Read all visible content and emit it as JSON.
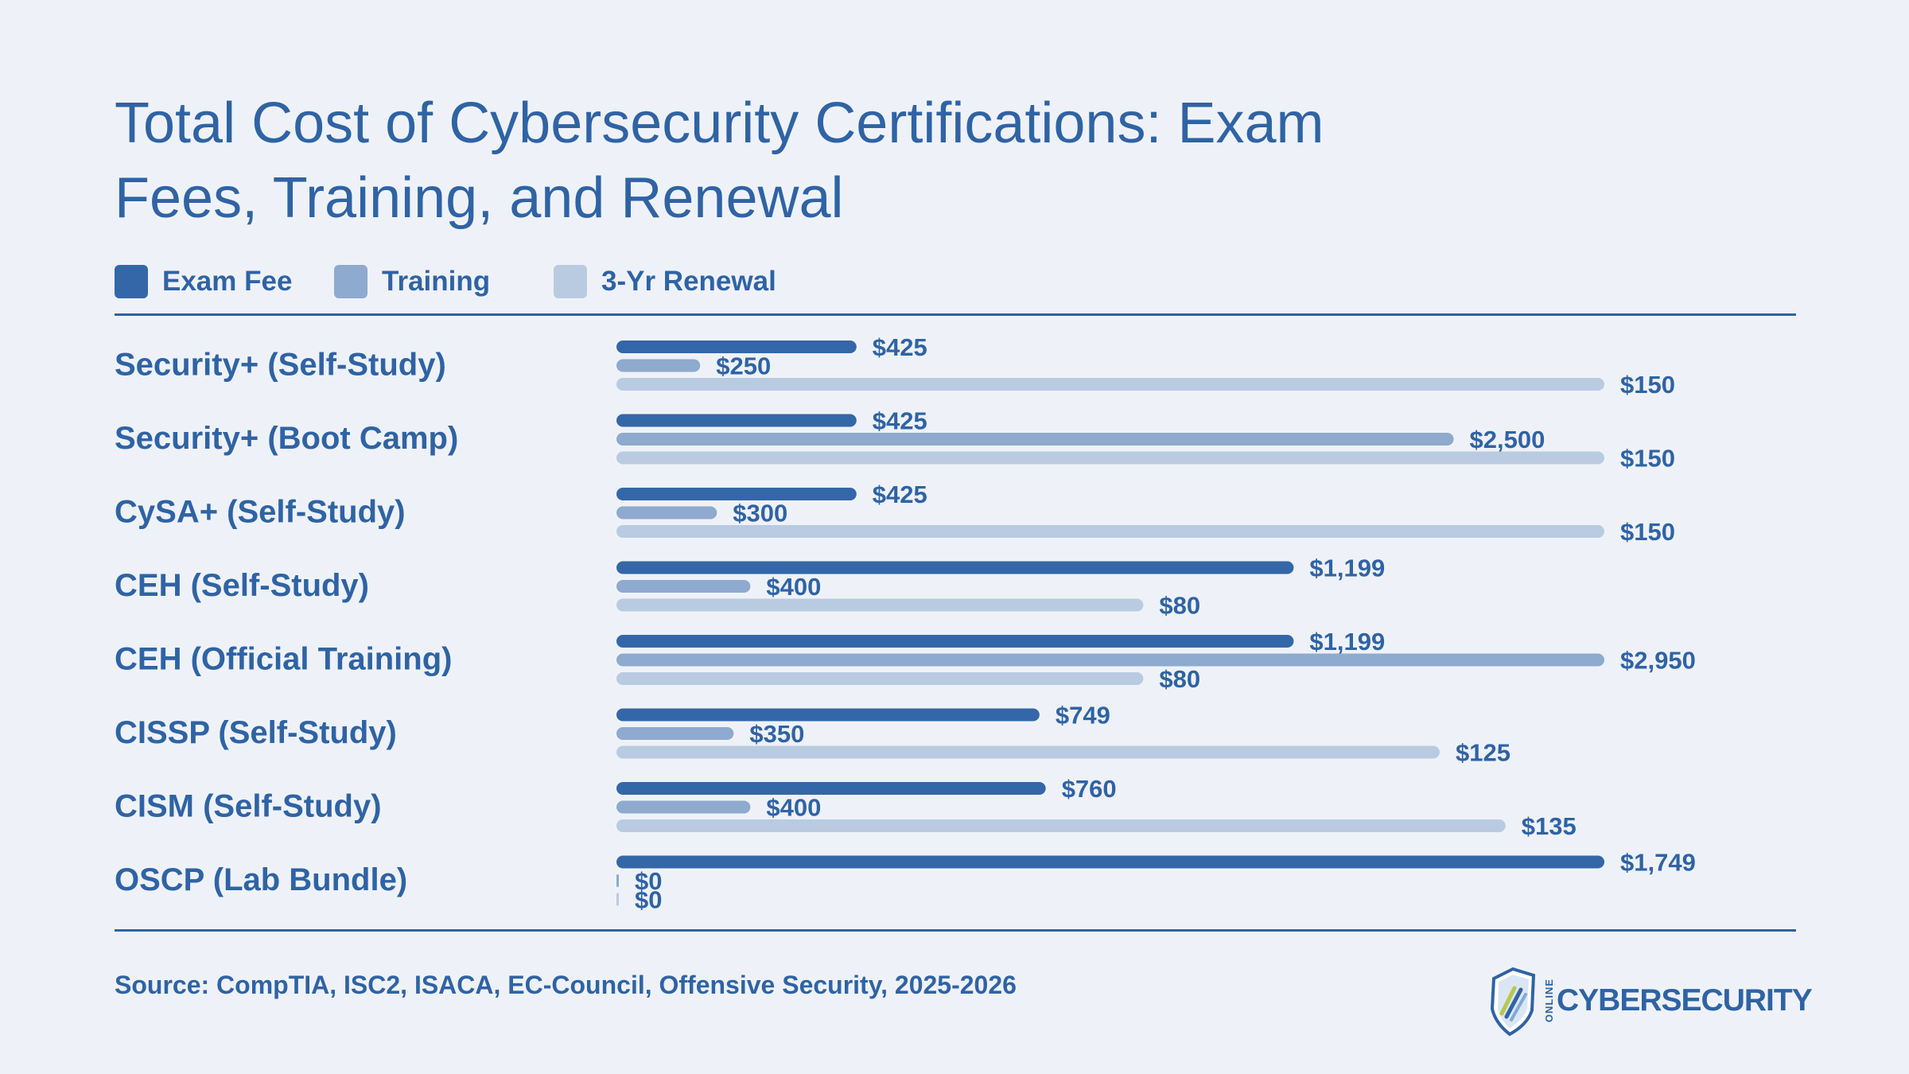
{
  "title": "Total Cost of Cybersecurity Certifications: Exam Fees, Training, and Renewal",
  "source": "Source: CompTIA, ISC2, ISACA, EC-Council, Offensive Security, 2025-2026",
  "brand": {
    "small": "ONLINE",
    "word": "CYBERSECURITY"
  },
  "colors": {
    "background": "#eef2f8",
    "text": "#2f63a4",
    "exam_fee": "#3467a8",
    "training": "#8eaace",
    "renewal": "#b9cbe1"
  },
  "chart_data": {
    "type": "bar",
    "orientation": "horizontal",
    "title": "Total Cost of Cybersecurity Certifications: Exam Fees, Training, and Renewal",
    "legend_position": "top-left",
    "grid": false,
    "scaling": "each series scaled to its own maximum",
    "categories": [
      "Security+ (Self-Study)",
      "Security+ (Boot Camp)",
      "CySA+ (Self-Study)",
      "CEH (Self-Study)",
      "CEH (Official Training)",
      "CISSP (Self-Study)",
      "CISM (Self-Study)",
      "OSCP (Lab Bundle)"
    ],
    "series": [
      {
        "name": "Exam Fee",
        "color": "#3467a8",
        "values": [
          425,
          425,
          425,
          1199,
          1199,
          749,
          760,
          1749
        ],
        "labels": [
          "$425",
          "$425",
          "$425",
          "$1,199",
          "$1,199",
          "$749",
          "$760",
          "$1,749"
        ]
      },
      {
        "name": "Training",
        "color": "#8eaace",
        "values": [
          250,
          2500,
          300,
          400,
          2950,
          350,
          400,
          0
        ],
        "labels": [
          "$250",
          "$2,500",
          "$300",
          "$400",
          "$2,950",
          "$350",
          "$400",
          "$0"
        ]
      },
      {
        "name": "3-Yr Renewal",
        "color": "#b9cbe1",
        "values": [
          150,
          150,
          150,
          80,
          80,
          125,
          135,
          0
        ],
        "labels": [
          "$150",
          "$150",
          "$150",
          "$80",
          "$80",
          "$125",
          "$135",
          "$0"
        ]
      }
    ]
  }
}
